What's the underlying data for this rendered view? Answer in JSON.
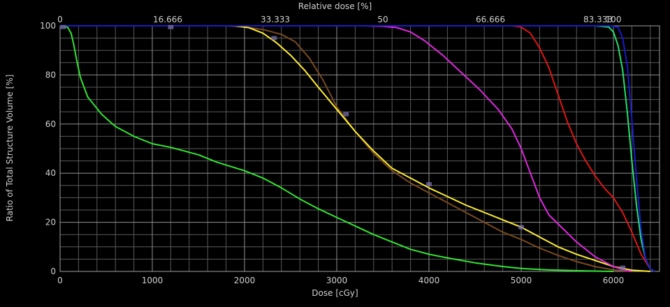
{
  "chart_data": {
    "type": "line",
    "title": "",
    "xlabel": "Dose [cGy]",
    "x2label": "Relative dose [%]",
    "ylabel": "Ratio of Total Structure Volume [%]",
    "xlim": [
      0,
      6500
    ],
    "ylim": [
      0,
      100
    ],
    "x_ticks": [
      0,
      1000,
      2000,
      3000,
      4000,
      5000,
      6000
    ],
    "x_tick_labels": [
      "0",
      "1000",
      "2000",
      "3000",
      "4000",
      "5000",
      "6000"
    ],
    "x2_ticks": [
      0,
      1166.67,
      2333.33,
      3500,
      4666.67,
      5833.33,
      7000
    ],
    "x2_tick_labels": [
      "0",
      "16.666",
      "33.333",
      "50",
      "66.666",
      "83.333",
      "100"
    ],
    "y_ticks": [
      0,
      20,
      40,
      60,
      80,
      100
    ],
    "y_tick_labels": [
      "0",
      "20",
      "40",
      "60",
      "80",
      "100"
    ],
    "grid": true,
    "series": [
      {
        "name": "green-low",
        "color": "#33e633",
        "points": [
          [
            0,
            100
          ],
          [
            80,
            99.5
          ],
          [
            120,
            97
          ],
          [
            150,
            92
          ],
          [
            180,
            86
          ],
          [
            220,
            79
          ],
          [
            300,
            71
          ],
          [
            450,
            64
          ],
          [
            600,
            59
          ],
          [
            800,
            55
          ],
          [
            1000,
            52
          ],
          [
            1200,
            50.5
          ],
          [
            1500,
            47.5
          ],
          [
            1700,
            44.5
          ],
          [
            2000,
            41
          ],
          [
            2200,
            38
          ],
          [
            2400,
            34
          ],
          [
            2600,
            29.5
          ],
          [
            2800,
            25.5
          ],
          [
            3000,
            22
          ],
          [
            3200,
            18.5
          ],
          [
            3400,
            15
          ],
          [
            3600,
            12
          ],
          [
            3800,
            9
          ],
          [
            4000,
            7
          ],
          [
            4200,
            5.5
          ],
          [
            4500,
            3.5
          ],
          [
            4800,
            2
          ],
          [
            5000,
            1.2
          ],
          [
            5300,
            0.6
          ],
          [
            5700,
            0.2
          ],
          [
            6000,
            0
          ]
        ]
      },
      {
        "name": "brown",
        "color": "#7a4a20",
        "points": [
          [
            0,
            100
          ],
          [
            1800,
            100
          ],
          [
            2000,
            99.5
          ],
          [
            2200,
            98.5
          ],
          [
            2400,
            96.5
          ],
          [
            2550,
            93.5
          ],
          [
            2700,
            87
          ],
          [
            2850,
            78
          ],
          [
            3000,
            67
          ],
          [
            3200,
            57
          ],
          [
            3400,
            48
          ],
          [
            3600,
            41
          ],
          [
            3800,
            36
          ],
          [
            4000,
            32
          ],
          [
            4200,
            28
          ],
          [
            4400,
            24
          ],
          [
            4600,
            20
          ],
          [
            4800,
            16
          ],
          [
            5000,
            13
          ],
          [
            5200,
            9.5
          ],
          [
            5400,
            6.5
          ],
          [
            5600,
            4
          ],
          [
            5800,
            2
          ],
          [
            6000,
            0.6
          ],
          [
            6200,
            0
          ]
        ]
      },
      {
        "name": "yellow",
        "color": "#ffee33",
        "points": [
          [
            0,
            100
          ],
          [
            1900,
            100
          ],
          [
            2050,
            99.2
          ],
          [
            2200,
            97
          ],
          [
            2350,
            93
          ],
          [
            2500,
            88
          ],
          [
            2650,
            82
          ],
          [
            2800,
            75
          ],
          [
            3000,
            66
          ],
          [
            3200,
            57
          ],
          [
            3400,
            49
          ],
          [
            3600,
            42
          ],
          [
            3800,
            38
          ],
          [
            4000,
            34
          ],
          [
            4200,
            30.5
          ],
          [
            4400,
            27
          ],
          [
            4600,
            24
          ],
          [
            4800,
            21
          ],
          [
            5000,
            18
          ],
          [
            5200,
            14
          ],
          [
            5400,
            10
          ],
          [
            5600,
            7
          ],
          [
            5800,
            4.5
          ],
          [
            6000,
            2
          ],
          [
            6200,
            0.5
          ],
          [
            6400,
            0
          ]
        ]
      },
      {
        "name": "magenta",
        "color": "#e028e0",
        "points": [
          [
            0,
            100
          ],
          [
            3300,
            100
          ],
          [
            3500,
            99.8
          ],
          [
            3650,
            99.3
          ],
          [
            3800,
            97.5
          ],
          [
            3950,
            94
          ],
          [
            4150,
            88
          ],
          [
            4350,
            81
          ],
          [
            4550,
            74
          ],
          [
            4750,
            66
          ],
          [
            4900,
            58
          ],
          [
            5000,
            50
          ],
          [
            5100,
            40
          ],
          [
            5200,
            30
          ],
          [
            5300,
            23
          ],
          [
            5450,
            17.5
          ],
          [
            5600,
            12
          ],
          [
            5800,
            6
          ],
          [
            6000,
            2
          ],
          [
            6150,
            0.2
          ],
          [
            6200,
            0
          ]
        ]
      },
      {
        "name": "red",
        "color": "#e01515",
        "points": [
          [
            0,
            100
          ],
          [
            4900,
            100
          ],
          [
            5000,
            99.5
          ],
          [
            5100,
            97
          ],
          [
            5200,
            91
          ],
          [
            5300,
            83
          ],
          [
            5400,
            72
          ],
          [
            5500,
            61
          ],
          [
            5600,
            52
          ],
          [
            5700,
            45
          ],
          [
            5800,
            39
          ],
          [
            5900,
            34
          ],
          [
            6000,
            30
          ],
          [
            6100,
            24
          ],
          [
            6200,
            16
          ],
          [
            6300,
            7
          ],
          [
            6400,
            1
          ],
          [
            6450,
            0
          ]
        ]
      },
      {
        "name": "green-high",
        "color": "#22e070",
        "points": [
          [
            0,
            100
          ],
          [
            5800,
            100
          ],
          [
            5950,
            99.5
          ],
          [
            6000,
            97.5
          ],
          [
            6050,
            92
          ],
          [
            6100,
            82
          ],
          [
            6150,
            65
          ],
          [
            6200,
            45
          ],
          [
            6250,
            27
          ],
          [
            6300,
            13
          ],
          [
            6350,
            5
          ],
          [
            6400,
            1
          ],
          [
            6450,
            0
          ]
        ]
      },
      {
        "name": "blue",
        "color": "#1a1acc",
        "points": [
          [
            0,
            100
          ],
          [
            5950,
            100
          ],
          [
            6050,
            99.5
          ],
          [
            6100,
            95
          ],
          [
            6150,
            84
          ],
          [
            6200,
            62
          ],
          [
            6250,
            38
          ],
          [
            6300,
            17
          ],
          [
            6350,
            5
          ],
          [
            6400,
            1
          ],
          [
            6450,
            0
          ]
        ]
      }
    ],
    "markers": [
      [
        35,
        99.5
      ],
      [
        1200,
        99.5
      ],
      [
        2320,
        95
      ],
      [
        3100,
        64
      ],
      [
        4000,
        35.5
      ],
      [
        5000,
        18
      ],
      [
        6100,
        1.5
      ]
    ]
  }
}
